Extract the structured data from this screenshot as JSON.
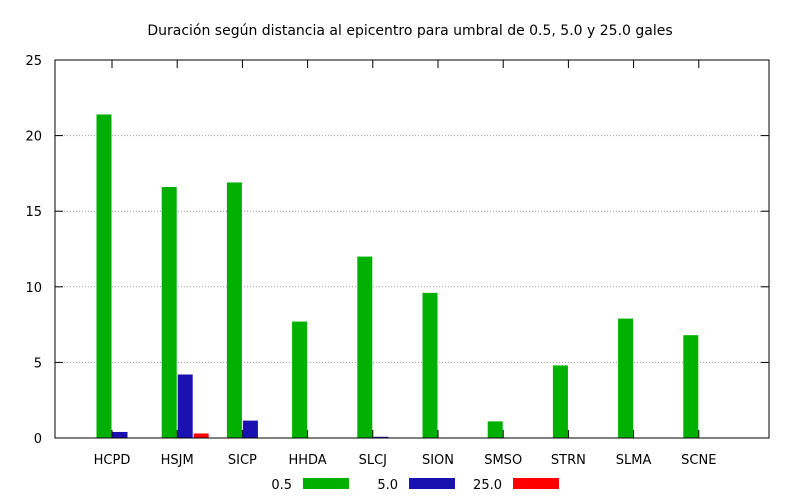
{
  "chart_data": {
    "type": "bar",
    "title": "Duración según distancia al epicentro para umbral de 0.5, 5.0 y 25.0 gales",
    "xlabel": "",
    "ylabel": "",
    "ylim": [
      0,
      25
    ],
    "yticks": [
      0,
      5,
      10,
      15,
      20,
      25
    ],
    "grid": true,
    "legend_position": "bottom",
    "categories": [
      "HCPD",
      "HSJM",
      "SICP",
      "HHDA",
      "SLCJ",
      "SION",
      "SMSO",
      "STRN",
      "SLMA",
      "SCNE"
    ],
    "series": [
      {
        "name": "0.5",
        "color": "#00b000",
        "values": [
          21.4,
          16.6,
          16.9,
          7.7,
          12.0,
          9.6,
          1.1,
          4.8,
          7.9,
          6.8
        ]
      },
      {
        "name": "5.0",
        "color": "#1a12b0",
        "values": [
          0.4,
          4.2,
          1.15,
          0.0,
          0.08,
          0.0,
          0.0,
          0.0,
          0.0,
          0.0
        ]
      },
      {
        "name": "25.0",
        "color": "#ff0000",
        "values": [
          0.0,
          0.3,
          0.0,
          0.0,
          0.0,
          0.0,
          0.0,
          0.0,
          0.0,
          0.0
        ]
      }
    ]
  }
}
